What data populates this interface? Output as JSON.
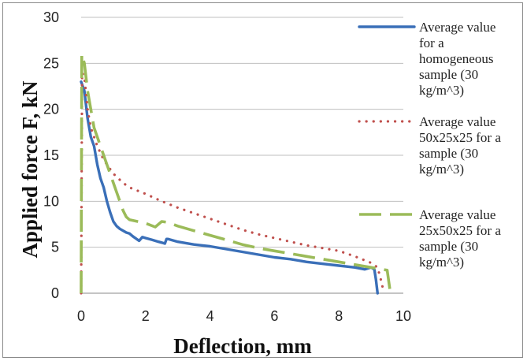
{
  "chart_data": {
    "type": "line",
    "xlabel": "Deflection, mm",
    "ylabel": "Applied force F, kN",
    "xlim": [
      0,
      10
    ],
    "ylim": [
      0,
      30
    ],
    "x_ticks": [
      0,
      2,
      4,
      6,
      8,
      10
    ],
    "y_ticks": [
      0,
      5,
      10,
      15,
      20,
      25,
      30
    ],
    "grid": "horizontal",
    "legend_position": "right",
    "series": [
      {
        "name": "Average value for a homogeneous sample (30 kg/m^3)",
        "color": "#3a6fb8",
        "style": "solid",
        "legend_lines": [
          "Average value",
          "for a",
          "homogeneous",
          "sample (30",
          "kg/m^3)"
        ],
        "points": [
          [
            0,
            23
          ],
          [
            0.1,
            22
          ],
          [
            0.2,
            19
          ],
          [
            0.3,
            17
          ],
          [
            0.4,
            16
          ],
          [
            0.5,
            14
          ],
          [
            0.6,
            12.5
          ],
          [
            0.7,
            11.5
          ],
          [
            0.8,
            10
          ],
          [
            0.9,
            8.8
          ],
          [
            1.0,
            7.8
          ],
          [
            1.1,
            7.3
          ],
          [
            1.2,
            7.0
          ],
          [
            1.4,
            6.6
          ],
          [
            1.5,
            6.5
          ],
          [
            1.6,
            6.2
          ],
          [
            1.8,
            5.7
          ],
          [
            1.9,
            6.1
          ],
          [
            2.0,
            6.0
          ],
          [
            2.2,
            5.8
          ],
          [
            2.4,
            5.6
          ],
          [
            2.5,
            5.5
          ],
          [
            2.6,
            5.4
          ],
          [
            2.65,
            5.9
          ],
          [
            2.7,
            5.9
          ],
          [
            3.0,
            5.6
          ],
          [
            3.5,
            5.3
          ],
          [
            4.0,
            5.1
          ],
          [
            4.5,
            4.8
          ],
          [
            5.0,
            4.5
          ],
          [
            5.5,
            4.2
          ],
          [
            6.0,
            3.9
          ],
          [
            6.5,
            3.7
          ],
          [
            7.0,
            3.4
          ],
          [
            7.5,
            3.2
          ],
          [
            8.0,
            3.0
          ],
          [
            8.5,
            2.8
          ],
          [
            8.8,
            2.6
          ],
          [
            9.0,
            2.8
          ],
          [
            9.1,
            2.6
          ],
          [
            9.15,
            1.5
          ],
          [
            9.2,
            0
          ]
        ]
      },
      {
        "name": "Average value 50x25x25 for a sample (30 kg/m^3)",
        "color": "#c0504d",
        "style": "dotted",
        "legend_lines": [
          "Average value",
          "50x25x25 for a",
          "sample (30",
          "kg/m^3)"
        ],
        "points": [
          [
            0,
            0
          ],
          [
            0.03,
            24
          ],
          [
            0.1,
            23.5
          ],
          [
            0.2,
            20
          ],
          [
            0.3,
            18
          ],
          [
            0.5,
            16
          ],
          [
            0.7,
            14.5
          ],
          [
            0.9,
            13.5
          ],
          [
            1.0,
            13
          ],
          [
            1.3,
            12
          ],
          [
            1.5,
            11.5
          ],
          [
            2.0,
            10.8
          ],
          [
            2.5,
            10
          ],
          [
            3.0,
            9.3
          ],
          [
            3.5,
            8.7
          ],
          [
            4.0,
            8.1
          ],
          [
            4.5,
            7.5
          ],
          [
            5.0,
            6.9
          ],
          [
            5.5,
            6.4
          ],
          [
            6.0,
            6.0
          ],
          [
            6.5,
            5.6
          ],
          [
            7.0,
            5.2
          ],
          [
            7.5,
            4.9
          ],
          [
            8.0,
            4.6
          ],
          [
            8.5,
            4.0
          ],
          [
            9.0,
            3.3
          ],
          [
            9.2,
            2.8
          ],
          [
            9.3,
            1.5
          ],
          [
            9.4,
            0
          ]
        ]
      },
      {
        "name": "Average value 25x50x25 for a sample (30 kg/m^3)",
        "color": "#9bbb59",
        "style": "dashed",
        "legend_lines": [
          "Average value",
          "25x50x25 for a",
          "sample (30",
          "kg/m^3)"
        ],
        "points": [
          [
            0,
            0
          ],
          [
            0.02,
            26
          ],
          [
            0.1,
            25
          ],
          [
            0.2,
            22
          ],
          [
            0.3,
            20
          ],
          [
            0.4,
            18
          ],
          [
            0.5,
            17
          ],
          [
            0.6,
            16
          ],
          [
            0.7,
            15
          ],
          [
            0.8,
            14
          ],
          [
            0.9,
            13
          ],
          [
            1.0,
            12
          ],
          [
            1.1,
            11
          ],
          [
            1.2,
            10
          ],
          [
            1.3,
            9
          ],
          [
            1.4,
            8.3
          ],
          [
            1.5,
            8.0
          ],
          [
            2.0,
            7.6
          ],
          [
            2.3,
            7.2
          ],
          [
            2.5,
            7.8
          ],
          [
            2.7,
            7.7
          ],
          [
            3.0,
            7.3
          ],
          [
            3.5,
            6.8
          ],
          [
            4.0,
            6.3
          ],
          [
            4.5,
            5.8
          ],
          [
            5.0,
            5.3
          ],
          [
            5.5,
            4.9
          ],
          [
            6.0,
            4.6
          ],
          [
            6.5,
            4.3
          ],
          [
            7.0,
            4.0
          ],
          [
            7.5,
            3.7
          ],
          [
            8.0,
            3.4
          ],
          [
            8.5,
            3.1
          ],
          [
            9.0,
            2.8
          ],
          [
            9.5,
            2.5
          ],
          [
            9.6,
            0
          ]
        ]
      }
    ]
  }
}
